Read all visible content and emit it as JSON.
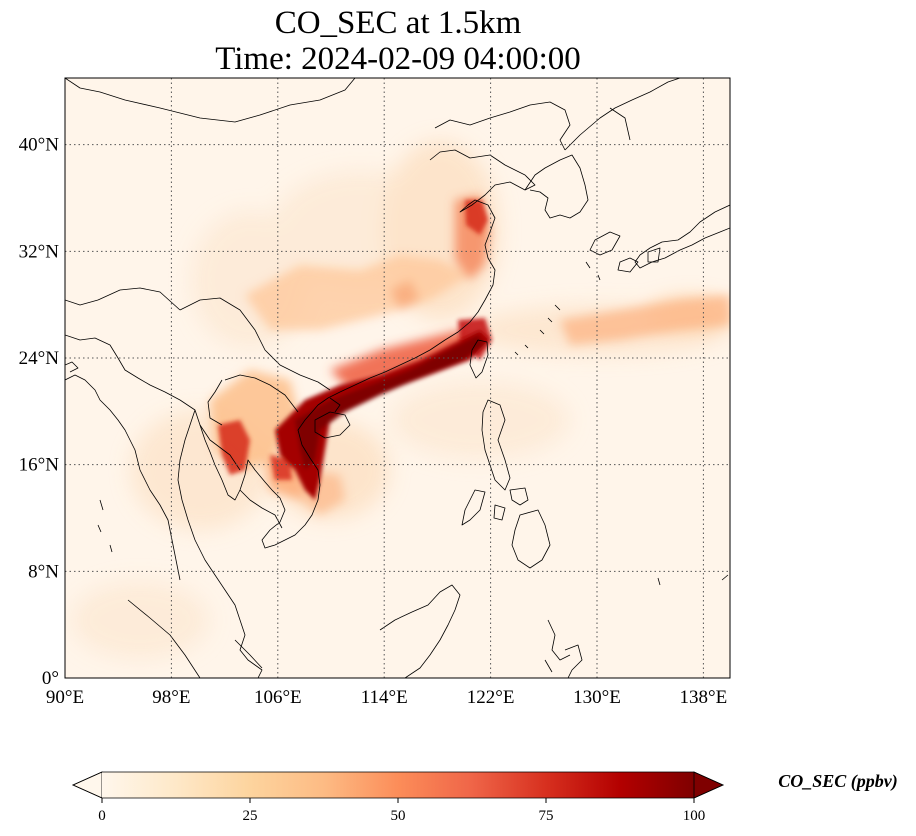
{
  "title": {
    "line1": "CO_SEC at 1.5km",
    "line2": "Time: 2024-02-09 04:00:00"
  },
  "map": {
    "projection": "PlateCarree",
    "lon_range": [
      90,
      140
    ],
    "lat_range": [
      0,
      45
    ],
    "gridlines": "dotted",
    "lon_ticks": [
      90,
      98,
      106,
      114,
      122,
      130,
      138
    ],
    "lat_ticks": [
      0,
      8,
      16,
      24,
      32,
      40
    ],
    "lon_tick_labels": [
      "90°E",
      "98°E",
      "106°E",
      "114°E",
      "122°E",
      "130°E",
      "138°E"
    ],
    "lat_tick_labels": [
      "0°",
      "8°N",
      "16°N",
      "24°N",
      "32°N",
      "40°N"
    ],
    "colormap": "OrRd",
    "colors": {
      "background": "#fff5ea",
      "low": "#fee8c8",
      "mid": "#fc8d59",
      "high": "#b30000",
      "max": "#7f0000"
    }
  },
  "colorbar": {
    "label": "CO_SEC (ppbv)",
    "range": [
      0,
      100
    ],
    "ticks": [
      0,
      25,
      50,
      75,
      100
    ],
    "tick_labels": [
      "0",
      "25",
      "50",
      "75",
      "100"
    ],
    "extend": "both",
    "orientation": "horizontal"
  }
}
